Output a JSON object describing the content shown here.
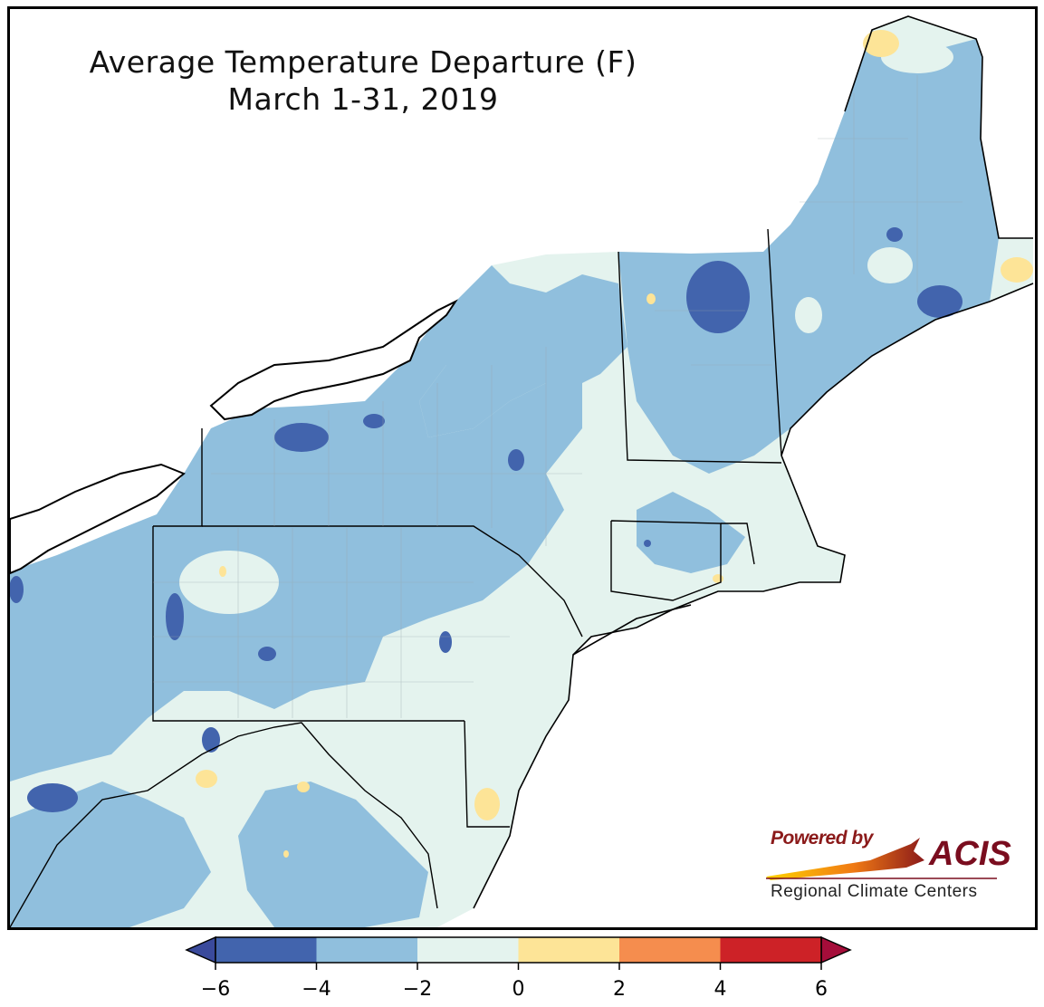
{
  "title": {
    "line1": "Average Temperature Departure (F)",
    "line2": "March 1-31, 2019"
  },
  "logo": {
    "powered_by": "Powered by",
    "brand": "ACIS",
    "subtitle": "Regional Climate Centers"
  },
  "colorbar": {
    "ticks": [
      "−6",
      "−4",
      "−2",
      "0",
      "2",
      "4",
      "6"
    ],
    "tick_values": [
      -6,
      -4,
      -2,
      0,
      2,
      4,
      6
    ],
    "bins": [
      {
        "from": -6,
        "to": -4,
        "color": "#4264ad"
      },
      {
        "from": -4,
        "to": -2,
        "color": "#90bfdd"
      },
      {
        "from": -2,
        "to": 0,
        "color": "#e4f3ee"
      },
      {
        "from": 0,
        "to": 2,
        "color": "#fde497"
      },
      {
        "from": 2,
        "to": 4,
        "color": "#f58d4e"
      },
      {
        "from": 4,
        "to": 6,
        "color": "#cd2227"
      }
    ],
    "under_color": "#3a4a9c",
    "over_color": "#a50d3a"
  }
}
